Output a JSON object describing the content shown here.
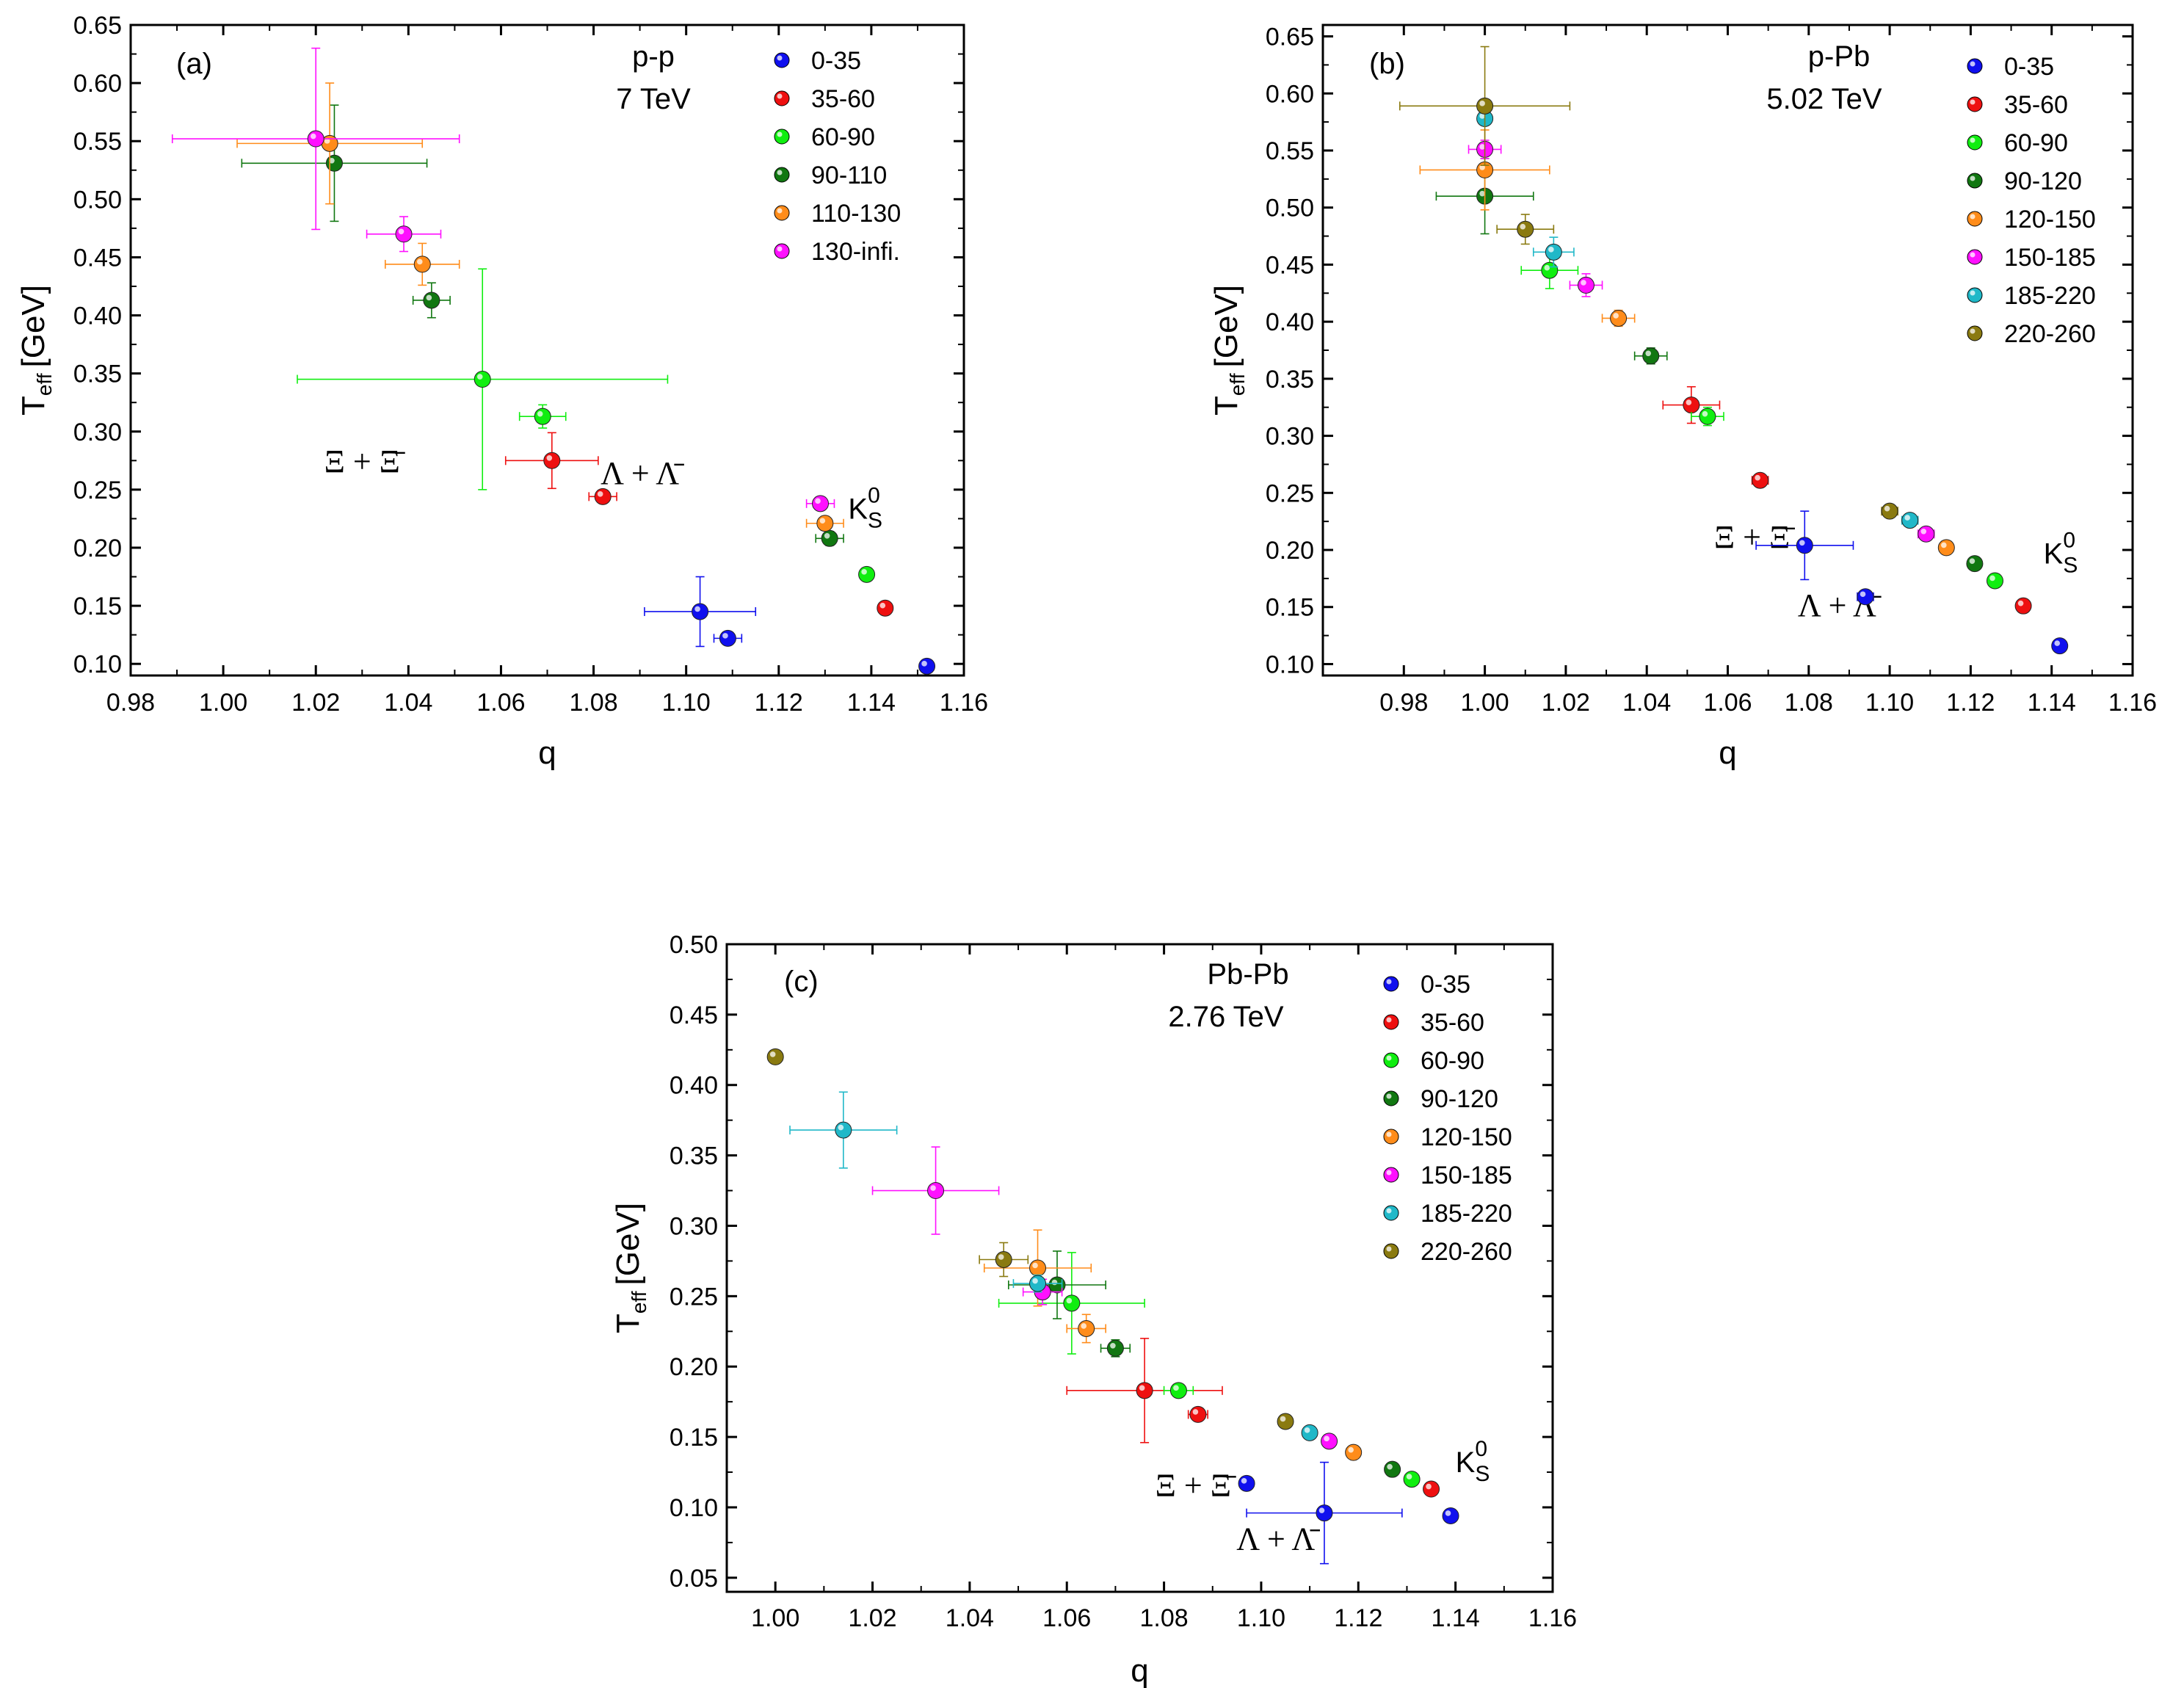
{
  "chart_data": [
    {
      "type": "scatter",
      "panel_label": "(a)",
      "system": "p-p",
      "energy": "7 TeV",
      "xlabel": "q",
      "ylabel_main": "T",
      "ylabel_sub": "eff",
      "ylabel_unit": "[GeV]",
      "xlim": [
        0.98,
        1.16
      ],
      "ylim": [
        0.09,
        0.65
      ],
      "xticks": [
        "0.98",
        "1.00",
        "1.02",
        "1.04",
        "1.06",
        "1.08",
        "1.10",
        "1.12",
        "1.14",
        "1.16"
      ],
      "yticks": [
        "0.10",
        "0.15",
        "0.20",
        "0.25",
        "0.30",
        "0.35",
        "0.40",
        "0.45",
        "0.50",
        "0.55",
        "0.60",
        "0.65"
      ],
      "legend": [
        "0-35",
        "35-60",
        "60-90",
        "90-110",
        "110-130",
        "130-infi."
      ],
      "species_labels": [
        {
          "id": "xi",
          "text": "Ξ + Ξ̄",
          "x": 1.03,
          "y": 0.265
        },
        {
          "id": "lambda",
          "text": "Λ + Λ̄",
          "x": 1.09,
          "y": 0.255
        },
        {
          "id": "k0s",
          "text": "K",
          "sub": "S",
          "sup": "0",
          "x": 1.135,
          "y": 0.225
        }
      ],
      "series": [
        {
          "name": "0-35",
          "color": "#1010ee",
          "points": [
            {
              "x": 1.103,
              "y": 0.145,
              "xerr": 0.012,
              "yerr": 0.03
            },
            {
              "x": 1.109,
              "y": 0.122,
              "xerr": 0.003,
              "yerr": 0.004
            },
            {
              "x": 1.152,
              "y": 0.098,
              "xerr": 0.0,
              "yerr": 0.0
            }
          ]
        },
        {
          "name": "35-60",
          "color": "#ee1010",
          "points": [
            {
              "x": 1.071,
              "y": 0.275,
              "xerr": 0.01,
              "yerr": 0.024
            },
            {
              "x": 1.082,
              "y": 0.244,
              "xerr": 0.003,
              "yerr": 0.004
            },
            {
              "x": 1.143,
              "y": 0.148,
              "xerr": 0.0,
              "yerr": 0.0
            }
          ]
        },
        {
          "name": "60-90",
          "color": "#10ee10",
          "points": [
            {
              "x": 1.056,
              "y": 0.345,
              "xerr": 0.04,
              "yerr": 0.095
            },
            {
              "x": 1.069,
              "y": 0.313,
              "xerr": 0.005,
              "yerr": 0.01
            },
            {
              "x": 1.139,
              "y": 0.177,
              "xerr": 0.0,
              "yerr": 0.0
            }
          ]
        },
        {
          "name": "90-110",
          "color": "#117711",
          "points": [
            {
              "x": 1.024,
              "y": 0.531,
              "xerr": 0.02,
              "yerr": 0.05
            },
            {
              "x": 1.045,
              "y": 0.413,
              "xerr": 0.004,
              "yerr": 0.015
            },
            {
              "x": 1.131,
              "y": 0.208,
              "xerr": 0.003,
              "yerr": 0.006
            }
          ]
        },
        {
          "name": "110-130",
          "color": "#ff8c1a",
          "points": [
            {
              "x": 1.023,
              "y": 0.548,
              "xerr": 0.02,
              "yerr": 0.052
            },
            {
              "x": 1.043,
              "y": 0.444,
              "xerr": 0.008,
              "yerr": 0.018
            },
            {
              "x": 1.13,
              "y": 0.221,
              "xerr": 0.004,
              "yerr": 0.006
            }
          ]
        },
        {
          "name": "130-infi.",
          "color": "#ff10ff",
          "points": [
            {
              "x": 1.02,
              "y": 0.552,
              "xerr": 0.031,
              "yerr": 0.078
            },
            {
              "x": 1.039,
              "y": 0.47,
              "xerr": 0.008,
              "yerr": 0.015
            },
            {
              "x": 1.129,
              "y": 0.238,
              "xerr": 0.003,
              "yerr": 0.004
            }
          ]
        }
      ]
    },
    {
      "type": "scatter",
      "panel_label": "(b)",
      "system": "p-Pb",
      "energy": "5.02 TeV",
      "xlabel": "q",
      "ylabel_main": "T",
      "ylabel_sub": "eff",
      "ylabel_unit": "[GeV]",
      "xlim": [
        0.96,
        1.16
      ],
      "ylim": [
        0.09,
        0.66
      ],
      "xticks": [
        "0.98",
        "1.00",
        "1.02",
        "1.04",
        "1.06",
        "1.08",
        "1.10",
        "1.12",
        "1.14",
        "1.16"
      ],
      "yticks": [
        "0.10",
        "0.15",
        "0.20",
        "0.25",
        "0.30",
        "0.35",
        "0.40",
        "0.45",
        "0.50",
        "0.55",
        "0.60",
        "0.65"
      ],
      "legend": [
        "0-35",
        "35-60",
        "60-90",
        "90-120",
        "120-150",
        "150-185",
        "185-220",
        "220-260"
      ],
      "species_labels": [
        {
          "id": "xi",
          "text": "Ξ + Ξ̄",
          "x": 1.066,
          "y": 0.202
        },
        {
          "id": "lambda",
          "text": "Λ + Λ̄",
          "x": 1.087,
          "y": 0.142
        },
        {
          "id": "k0s",
          "text": "K",
          "sub": "S",
          "sup": "0",
          "x": 1.138,
          "y": 0.188
        }
      ],
      "series": [
        {
          "name": "0-35",
          "color": "#1010ee",
          "points": [
            {
              "x": 1.079,
              "y": 0.204,
              "xerr": 0.012,
              "yerr": 0.03
            },
            {
              "x": 1.094,
              "y": 0.159,
              "xerr": 0.002,
              "yerr": 0.003
            },
            {
              "x": 1.142,
              "y": 0.116,
              "xerr": 0.0,
              "yerr": 0.0
            }
          ]
        },
        {
          "name": "35-60",
          "color": "#ee1010",
          "points": [
            {
              "x": 1.051,
              "y": 0.327,
              "xerr": 0.007,
              "yerr": 0.016
            },
            {
              "x": 1.068,
              "y": 0.261,
              "xerr": 0.002,
              "yerr": 0.003
            },
            {
              "x": 1.133,
              "y": 0.151,
              "xerr": 0.0,
              "yerr": 0.0
            }
          ]
        },
        {
          "name": "60-90",
          "color": "#10ee10",
          "points": [
            {
              "x": 1.016,
              "y": 0.445,
              "xerr": 0.007,
              "yerr": 0.016
            },
            {
              "x": 1.055,
              "y": 0.317,
              "xerr": 0.004,
              "yerr": 0.008
            },
            {
              "x": 1.126,
              "y": 0.173,
              "xerr": 0.0,
              "yerr": 0.0
            }
          ]
        },
        {
          "name": "90-120",
          "color": "#117711",
          "points": [
            {
              "x": 1.0,
              "y": 0.51,
              "xerr": 0.012,
              "yerr": 0.033
            },
            {
              "x": 1.041,
              "y": 0.37,
              "xerr": 0.004,
              "yerr": 0.007
            },
            {
              "x": 1.121,
              "y": 0.188,
              "xerr": 0.0,
              "yerr": 0.0
            }
          ]
        },
        {
          "name": "120-150",
          "color": "#ff8c1a",
          "points": [
            {
              "x": 1.0,
              "y": 0.533,
              "xerr": 0.016,
              "yerr": 0.035
            },
            {
              "x": 1.033,
              "y": 0.403,
              "xerr": 0.004,
              "yerr": 0.007
            },
            {
              "x": 1.114,
              "y": 0.202,
              "xerr": 0.0,
              "yerr": 0.0
            }
          ]
        },
        {
          "name": "150-185",
          "color": "#ff10ff",
          "points": [
            {
              "x": 1.0,
              "y": 0.551,
              "xerr": 0.004,
              "yerr": 0.008
            },
            {
              "x": 1.025,
              "y": 0.432,
              "xerr": 0.004,
              "yerr": 0.01
            },
            {
              "x": 1.109,
              "y": 0.214,
              "xerr": 0.002,
              "yerr": 0.003
            }
          ]
        },
        {
          "name": "185-220",
          "color": "#20b8c8",
          "points": [
            {
              "x": 1.0,
              "y": 0.578,
              "xerr": 0.0,
              "yerr": 0.0
            },
            {
              "x": 1.017,
              "y": 0.461,
              "xerr": 0.005,
              "yerr": 0.013
            },
            {
              "x": 1.105,
              "y": 0.226,
              "xerr": 0.002,
              "yerr": 0.003
            }
          ]
        },
        {
          "name": "220-260",
          "color": "#8a7a10",
          "points": [
            {
              "x": 1.0,
              "y": 0.589,
              "xerr": 0.021,
              "yerr": 0.052
            },
            {
              "x": 1.01,
              "y": 0.481,
              "xerr": 0.007,
              "yerr": 0.013
            },
            {
              "x": 1.1,
              "y": 0.234,
              "xerr": 0.002,
              "yerr": 0.004
            }
          ]
        }
      ]
    },
    {
      "type": "scatter",
      "panel_label": "(c)",
      "system": "Pb-Pb",
      "energy": "2.76 TeV",
      "xlabel": "q",
      "ylabel_main": "T",
      "ylabel_sub": "eff",
      "ylabel_unit": "[GeV]",
      "xlim": [
        0.99,
        1.16
      ],
      "ylim": [
        0.04,
        0.5
      ],
      "xticks": [
        "1.00",
        "1.02",
        "1.04",
        "1.06",
        "1.08",
        "1.10",
        "1.12",
        "1.14",
        "1.16"
      ],
      "yticks": [
        "0.05",
        "0.10",
        "0.15",
        "0.20",
        "0.25",
        "0.30",
        "0.35",
        "0.40",
        "0.45",
        "0.50"
      ],
      "legend": [
        "0-35",
        "35-60",
        "60-90",
        "90-120",
        "120-150",
        "150-185",
        "185-220",
        "220-260"
      ],
      "species_labels": [
        {
          "id": "xi",
          "text": "Ξ + Ξ̄",
          "x": 1.086,
          "y": 0.108
        },
        {
          "id": "lambda",
          "text": "Λ + Λ̄",
          "x": 1.103,
          "y": 0.07
        },
        {
          "id": "k0s",
          "text": "K",
          "sub": "S",
          "sup": "0",
          "x": 1.14,
          "y": 0.125
        }
      ],
      "series": [
        {
          "name": "0-35",
          "color": "#1010ee",
          "points": [
            {
              "x": 1.113,
              "y": 0.096,
              "xerr": 0.016,
              "yerr": 0.036
            },
            {
              "x": 1.097,
              "y": 0.117,
              "xerr": 0.001,
              "yerr": 0.002
            },
            {
              "x": 1.139,
              "y": 0.094,
              "xerr": 0.0,
              "yerr": 0.0
            }
          ]
        },
        {
          "name": "35-60",
          "color": "#ee1010",
          "points": [
            {
              "x": 1.076,
              "y": 0.183,
              "xerr": 0.016,
              "yerr": 0.037
            },
            {
              "x": 1.087,
              "y": 0.166,
              "xerr": 0.002,
              "yerr": 0.003
            },
            {
              "x": 1.135,
              "y": 0.113,
              "xerr": 0.0,
              "yerr": 0.0
            }
          ]
        },
        {
          "name": "60-90",
          "color": "#10ee10",
          "points": [
            {
              "x": 1.061,
              "y": 0.245,
              "xerr": 0.015,
              "yerr": 0.036
            },
            {
              "x": 1.083,
              "y": 0.183,
              "xerr": 0.003,
              "yerr": 0.004
            },
            {
              "x": 1.131,
              "y": 0.12,
              "xerr": 0.0,
              "yerr": 0.0
            }
          ]
        },
        {
          "name": "90-120",
          "color": "#117711",
          "points": [
            {
              "x": 1.058,
              "y": 0.258,
              "xerr": 0.01,
              "yerr": 0.024
            },
            {
              "x": 1.07,
              "y": 0.213,
              "xerr": 0.003,
              "yerr": 0.006
            },
            {
              "x": 1.127,
              "y": 0.127,
              "xerr": 0.0,
              "yerr": 0.0
            }
          ]
        },
        {
          "name": "120-150",
          "color": "#ff8c1a",
          "points": [
            {
              "x": 1.054,
              "y": 0.27,
              "xerr": 0.011,
              "yerr": 0.027
            },
            {
              "x": 1.064,
              "y": 0.227,
              "xerr": 0.004,
              "yerr": 0.01
            },
            {
              "x": 1.119,
              "y": 0.139,
              "xerr": 0.0,
              "yerr": 0.0
            }
          ]
        },
        {
          "name": "150-185",
          "color": "#ff10ff",
          "points": [
            {
              "x": 1.033,
              "y": 0.325,
              "xerr": 0.013,
              "yerr": 0.031
            },
            {
              "x": 1.055,
              "y": 0.253,
              "xerr": 0.004,
              "yerr": 0.009
            },
            {
              "x": 1.114,
              "y": 0.147,
              "xerr": 0.0,
              "yerr": 0.0
            }
          ]
        },
        {
          "name": "185-220",
          "color": "#20b8c8",
          "points": [
            {
              "x": 1.014,
              "y": 0.368,
              "xerr": 0.011,
              "yerr": 0.027
            },
            {
              "x": 1.054,
              "y": 0.259,
              "xerr": 0.005,
              "yerr": 0.006
            },
            {
              "x": 1.11,
              "y": 0.153,
              "xerr": 0.0,
              "yerr": 0.0
            }
          ]
        },
        {
          "name": "220-260",
          "color": "#8a7a10",
          "points": [
            {
              "x": 1.0,
              "y": 0.42,
              "xerr": 0.0,
              "yerr": 0.0
            },
            {
              "x": 1.047,
              "y": 0.276,
              "xerr": 0.005,
              "yerr": 0.012
            },
            {
              "x": 1.105,
              "y": 0.161,
              "xerr": 0.0,
              "yerr": 0.0
            }
          ]
        }
      ]
    }
  ]
}
